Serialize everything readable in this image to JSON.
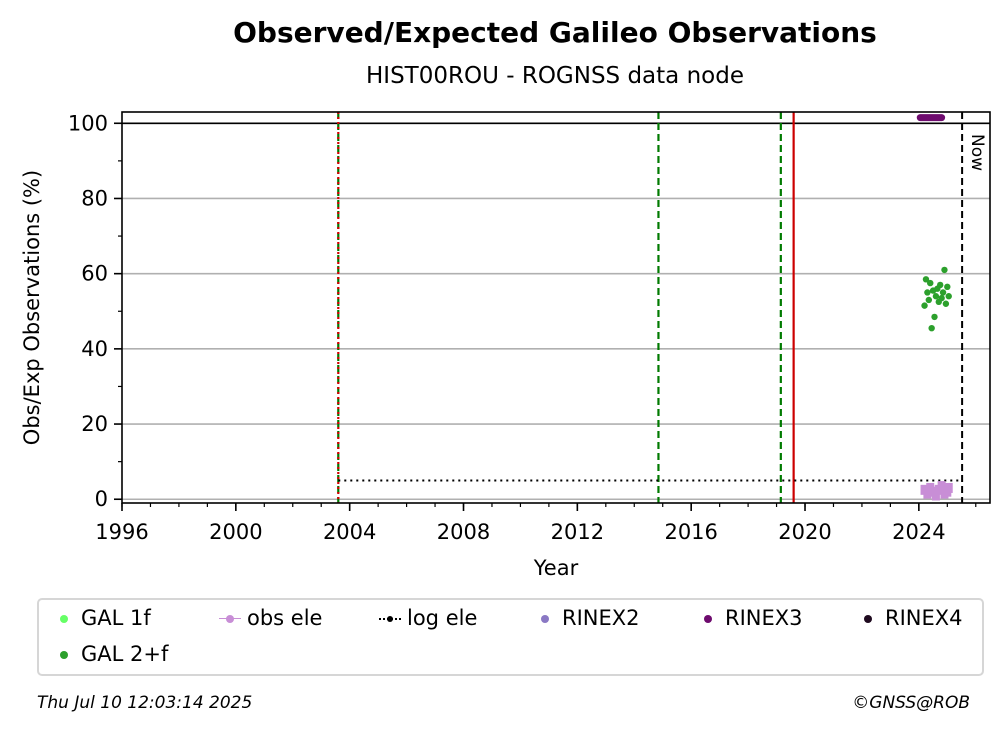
{
  "title": "Observed/Expected Galileo Observations",
  "subtitle": "HIST00ROU - ROGNSS data node",
  "footer_date": "Thu Jul 10 12:03:14 2025",
  "footer_credit": "©GNSS@ROB",
  "chart_data": {
    "type": "scatter",
    "xlabel": "Year",
    "ylabel": "Obs/Exp Observations (%)",
    "xlim": [
      1996,
      2026.5
    ],
    "ylim": [
      -1,
      103
    ],
    "x_ticks": [
      "1996",
      "2000",
      "2004",
      "2008",
      "2012",
      "2016",
      "2020",
      "2024"
    ],
    "y_ticks": [
      "0",
      "20",
      "40",
      "60",
      "80",
      "100"
    ],
    "grid": "horizontal",
    "reference_line_100": 100,
    "now_label": "Now",
    "now_year": 2025.52,
    "vlines": [
      {
        "x": 2003.6,
        "style": "dashed",
        "color": "#007a00"
      },
      {
        "x": 2003.6,
        "style": "dotted",
        "color": "#d40000"
      },
      {
        "x": 2014.85,
        "style": "dashed",
        "color": "#007a00"
      },
      {
        "x": 2019.15,
        "style": "dashed",
        "color": "#007a00"
      },
      {
        "x": 2019.6,
        "style": "solid",
        "color": "#cc0000"
      }
    ],
    "series": [
      {
        "name": "GAL 1f",
        "color": "#66ff66",
        "points": []
      },
      {
        "name": "GAL 2+f",
        "color": "#2ca02c",
        "points": [
          [
            2024.2,
            51.5
          ],
          [
            2024.25,
            58.5
          ],
          [
            2024.3,
            55.0
          ],
          [
            2024.35,
            53.0
          ],
          [
            2024.4,
            57.5
          ],
          [
            2024.45,
            45.5
          ],
          [
            2024.5,
            55.5
          ],
          [
            2024.55,
            48.5
          ],
          [
            2024.6,
            54.0
          ],
          [
            2024.65,
            56.0
          ],
          [
            2024.7,
            52.5
          ],
          [
            2024.75,
            57.0
          ],
          [
            2024.8,
            53.5
          ],
          [
            2024.85,
            55.0
          ],
          [
            2024.9,
            61.0
          ],
          [
            2024.95,
            52.0
          ],
          [
            2025.0,
            56.5
          ],
          [
            2025.05,
            54.0
          ]
        ]
      },
      {
        "name": "obs ele",
        "color": "#c88ed6",
        "points": [
          [
            2024.2,
            2.5
          ],
          [
            2024.3,
            1.5
          ],
          [
            2024.4,
            3.0
          ],
          [
            2024.5,
            2.0
          ],
          [
            2024.6,
            1.0
          ],
          [
            2024.7,
            2.5
          ],
          [
            2024.8,
            3.5
          ],
          [
            2024.9,
            1.5
          ],
          [
            2025.0,
            2.0
          ],
          [
            2025.05,
            3.0
          ]
        ]
      },
      {
        "name": "log ele",
        "color": "#000000",
        "line_y": 5,
        "x_range": [
          2003.6,
          2025.52
        ]
      },
      {
        "name": "RINEX2",
        "color": "#8a78c4",
        "points": []
      },
      {
        "name": "RINEX3",
        "color": "#6e0b6e",
        "y": 101.5,
        "x_range": [
          2024.05,
          2024.8
        ]
      },
      {
        "name": "RINEX4",
        "color": "#1f0a1f",
        "points": []
      }
    ]
  },
  "legend": [
    {
      "label": "GAL 1f",
      "color": "#66ff66",
      "marker": "dot"
    },
    {
      "label": "obs ele",
      "color": "#c88ed6",
      "marker": "line-dot"
    },
    {
      "label": "log ele",
      "color": "#000000",
      "marker": "dotted-dot"
    },
    {
      "label": "RINEX2",
      "color": "#8a78c4",
      "marker": "dot"
    },
    {
      "label": "RINEX3",
      "color": "#6e0b6e",
      "marker": "dot"
    },
    {
      "label": "RINEX4",
      "color": "#1f0a1f",
      "marker": "dot"
    },
    {
      "label": "GAL 2+f",
      "color": "#2ca02c",
      "marker": "dot"
    }
  ]
}
